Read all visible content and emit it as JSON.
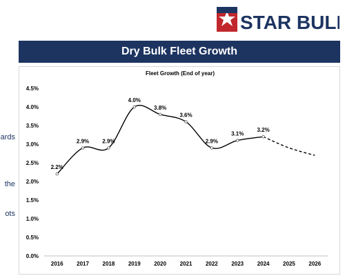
{
  "logo": {
    "text": "STAR BULK",
    "color": "#1d3461",
    "accent": "#c1272d"
  },
  "header": {
    "title": "Dry Bulk Fleet Growth"
  },
  "left_text_fragments": [
    "ards",
    "the",
    "ots"
  ],
  "colors": {
    "title_bar": "#1d3461",
    "line": "#000000"
  },
  "chart_data": {
    "type": "line",
    "title": "Fleet Growth (End of year)",
    "categories": [
      "2016",
      "2017",
      "2018",
      "2019",
      "2020",
      "2021",
      "2022",
      "2023",
      "2024",
      "2025",
      "2026"
    ],
    "series": [
      {
        "values": [
          2.2,
          2.9,
          2.9,
          4.0,
          3.8,
          3.6,
          2.9,
          3.1,
          3.2,
          null,
          null
        ],
        "style": "solid"
      },
      {
        "values": [
          null,
          null,
          null,
          null,
          null,
          null,
          null,
          null,
          3.2,
          2.9,
          2.7
        ],
        "style": "dashed"
      }
    ],
    "data_labels": [
      "2.2%",
      "2.9%",
      "2.9%",
      "4.0%",
      "3.8%",
      "3.6%",
      "2.9%",
      "3.1%",
      "3.2%",
      "",
      ""
    ],
    "y_ticks": [
      "0.0%",
      "0.5%",
      "1.0%",
      "1.5%",
      "2.0%",
      "2.5%",
      "3.0%",
      "3.5%",
      "4.0%",
      "4.5%"
    ],
    "ylim": [
      0,
      4.5
    ],
    "grid": false,
    "legend": "none"
  }
}
